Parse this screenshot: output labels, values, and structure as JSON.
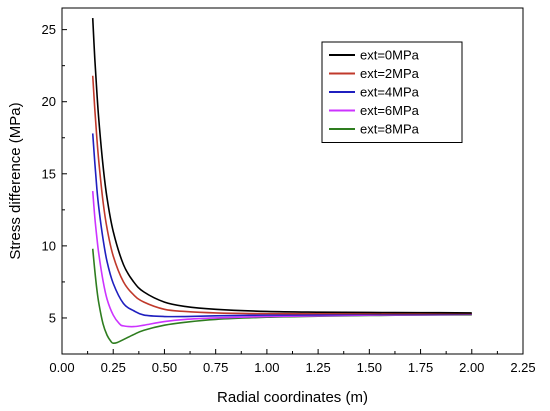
{
  "chart_data": {
    "type": "line",
    "title": "",
    "xlabel": "Radial coordinates (m)",
    "ylabel": "Stress difference (MPa)",
    "xlim": [
      0.0,
      2.25
    ],
    "ylim": [
      2.5,
      26.5
    ],
    "x_ticks": [
      0.0,
      0.25,
      0.5,
      0.75,
      1.0,
      1.25,
      1.5,
      1.75,
      2.0,
      2.25
    ],
    "x_tick_labels": [
      "0.00",
      "0.25",
      "0.50",
      "0.75",
      "1.00",
      "1.25",
      "1.50",
      "1.75",
      "2.00",
      "2.25"
    ],
    "y_ticks": [
      5,
      10,
      15,
      20,
      25
    ],
    "y_tick_labels": [
      "5",
      "10",
      "15",
      "20",
      "25"
    ],
    "grid": false,
    "legend_position": "top-right",
    "series": [
      {
        "name": "ext=0MPa",
        "color": "#000000",
        "x": [
          0.15,
          0.16,
          0.17,
          0.18,
          0.2,
          0.22,
          0.25,
          0.3,
          0.35,
          0.4,
          0.5,
          0.6,
          0.75,
          1.0,
          1.25,
          1.5,
          1.75,
          2.0
        ],
        "y": [
          25.8,
          23.0,
          20.7,
          18.7,
          15.6,
          13.3,
          11.0,
          8.7,
          7.5,
          6.8,
          6.1,
          5.8,
          5.6,
          5.45,
          5.4,
          5.38,
          5.37,
          5.35
        ]
      },
      {
        "name": "ext=2MPa",
        "color": "#c0392b",
        "x": [
          0.15,
          0.16,
          0.17,
          0.18,
          0.2,
          0.22,
          0.25,
          0.3,
          0.35,
          0.4,
          0.5,
          0.6,
          0.75,
          1.0,
          1.25,
          1.5,
          1.75,
          2.0
        ],
        "y": [
          21.8,
          19.5,
          17.5,
          15.8,
          13.1,
          11.2,
          9.3,
          7.5,
          6.6,
          6.1,
          5.6,
          5.45,
          5.35,
          5.3,
          5.3,
          5.3,
          5.3,
          5.3
        ]
      },
      {
        "name": "ext=4MPa",
        "color": "#1f1fbf",
        "x": [
          0.15,
          0.16,
          0.17,
          0.18,
          0.2,
          0.22,
          0.25,
          0.3,
          0.35,
          0.4,
          0.5,
          0.6,
          0.75,
          1.0,
          1.25,
          1.5,
          1.75,
          2.0
        ],
        "y": [
          17.8,
          15.8,
          14.0,
          12.6,
          10.5,
          8.9,
          7.4,
          6.0,
          5.5,
          5.2,
          5.1,
          5.1,
          5.15,
          5.2,
          5.22,
          5.25,
          5.25,
          5.27
        ]
      },
      {
        "name": "ext=6MPa",
        "color": "#cc33ff",
        "x": [
          0.15,
          0.16,
          0.17,
          0.18,
          0.2,
          0.22,
          0.25,
          0.28,
          0.3,
          0.35,
          0.4,
          0.5,
          0.6,
          0.75,
          1.0,
          1.25,
          1.5,
          1.75,
          2.0
        ],
        "y": [
          13.8,
          12.0,
          10.6,
          9.4,
          7.6,
          6.3,
          5.2,
          4.6,
          4.45,
          4.4,
          4.5,
          4.75,
          4.9,
          5.0,
          5.1,
          5.15,
          5.2,
          5.22,
          5.25
        ]
      },
      {
        "name": "ext=8MPa",
        "color": "#2e7d1f",
        "x": [
          0.15,
          0.16,
          0.17,
          0.18,
          0.2,
          0.22,
          0.24,
          0.25,
          0.27,
          0.3,
          0.35,
          0.4,
          0.5,
          0.6,
          0.75,
          1.0,
          1.25,
          1.5,
          1.75,
          2.0
        ],
        "y": [
          9.8,
          8.3,
          7.0,
          6.0,
          4.6,
          3.8,
          3.35,
          3.25,
          3.3,
          3.5,
          3.85,
          4.15,
          4.5,
          4.7,
          4.9,
          5.05,
          5.12,
          5.17,
          5.2,
          5.22
        ]
      }
    ]
  }
}
